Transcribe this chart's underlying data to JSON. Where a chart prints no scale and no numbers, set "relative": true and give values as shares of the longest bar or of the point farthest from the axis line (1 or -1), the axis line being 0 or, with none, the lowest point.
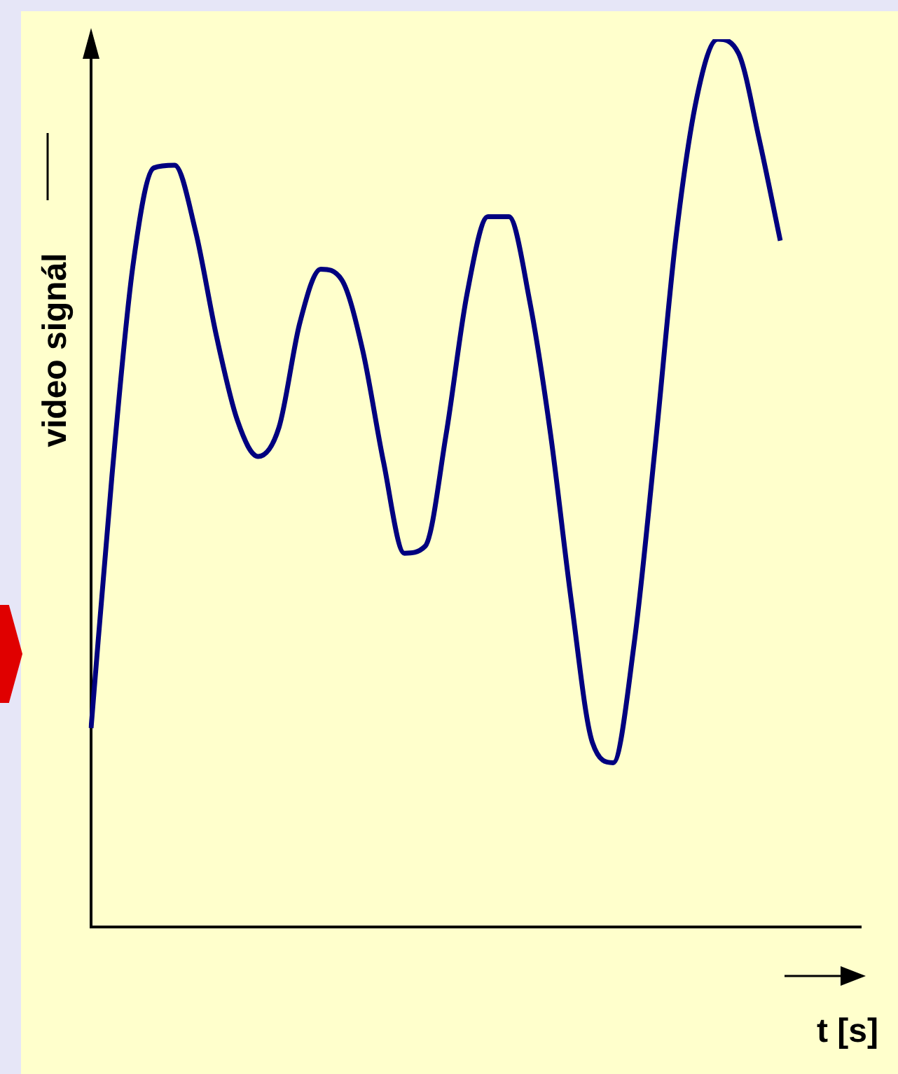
{
  "chart_data": {
    "type": "line",
    "relative": true,
    "xlabel": "t [s]",
    "ylabel": "video signál",
    "marker": "none",
    "categories": [
      null,
      null,
      null,
      null,
      null,
      null,
      null,
      null,
      null,
      null,
      null,
      null,
      null,
      null,
      null,
      null,
      null,
      null,
      null,
      null,
      null,
      null,
      null,
      null,
      null,
      null,
      null,
      null,
      null,
      null,
      null,
      null,
      null,
      null
    ],
    "series": [
      {
        "color": "#00007f",
        "values": [
          0.224,
          0.508,
          0.744,
          0.855,
          0.858,
          0.784,
          0.666,
          0.571,
          0.53,
          0.563,
          0.681,
          0.741,
          0.729,
          0.65,
          0.524,
          0.421,
          0.429,
          0.555,
          0.713,
          0.8,
          0.8,
          0.705,
          0.555,
          0.366,
          0.208,
          0.185,
          0.319,
          0.539,
          0.776,
          0.934,
          1,
          0.984,
          0.886,
          0.773
        ]
      }
    ]
  }
}
